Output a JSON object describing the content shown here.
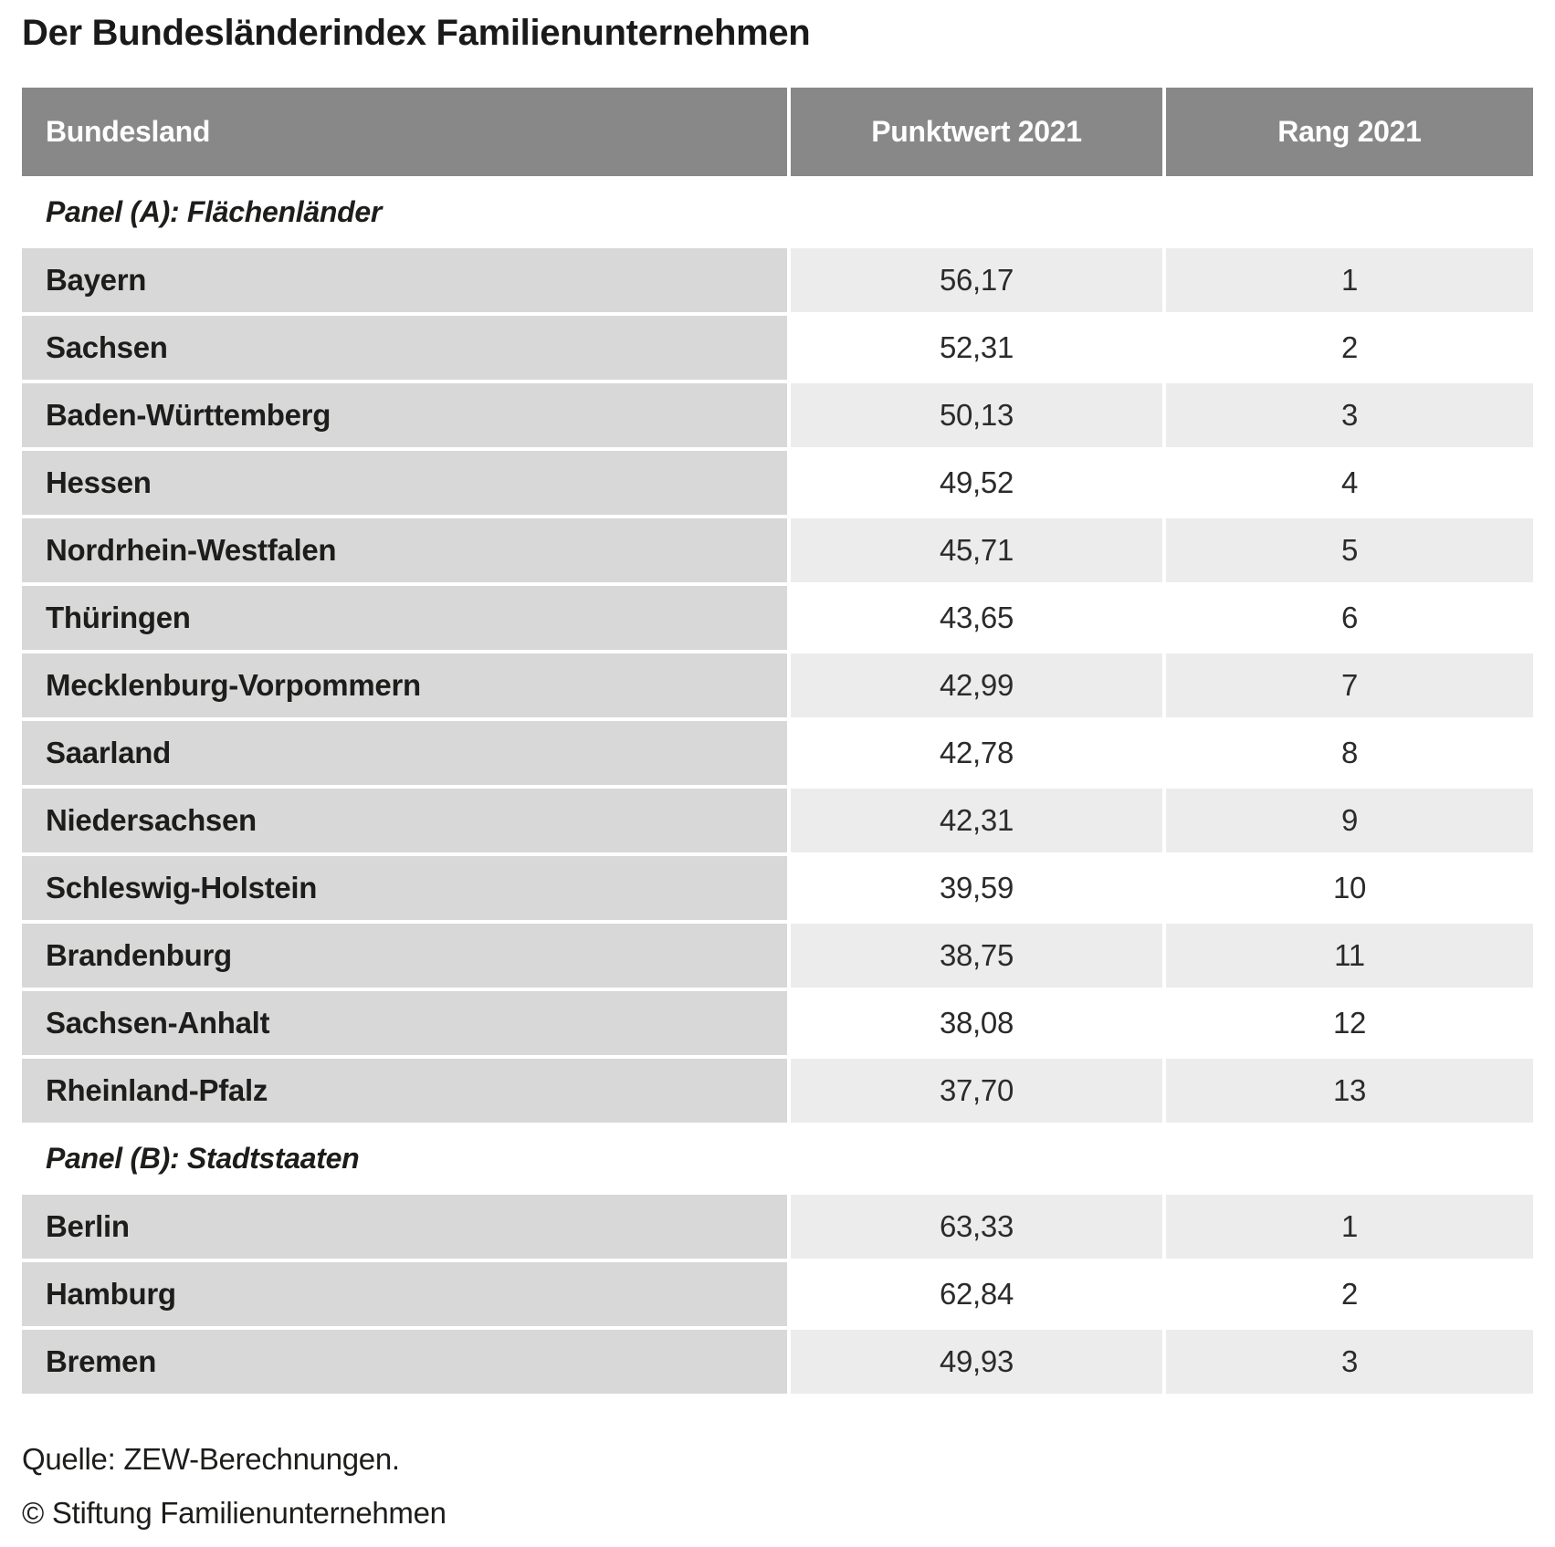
{
  "title": "Der Bundesländerindex Familienunternehmen",
  "table": {
    "columns": [
      "Bundesland",
      "Punktwert 2021",
      "Rang 2021"
    ],
    "panels": [
      {
        "label": "Panel (A): Flächenländer",
        "rows": [
          {
            "bundesland": "Bayern",
            "punktwert": "56,17",
            "rang": "1"
          },
          {
            "bundesland": "Sachsen",
            "punktwert": "52,31",
            "rang": "2"
          },
          {
            "bundesland": "Baden-Württemberg",
            "punktwert": "50,13",
            "rang": "3"
          },
          {
            "bundesland": "Hessen",
            "punktwert": "49,52",
            "rang": "4"
          },
          {
            "bundesland": "Nordrhein-Westfalen",
            "punktwert": "45,71",
            "rang": "5"
          },
          {
            "bundesland": "Thüringen",
            "punktwert": "43,65",
            "rang": "6"
          },
          {
            "bundesland": "Mecklenburg-Vorpommern",
            "punktwert": "42,99",
            "rang": "7"
          },
          {
            "bundesland": "Saarland",
            "punktwert": "42,78",
            "rang": "8"
          },
          {
            "bundesland": "Niedersachsen",
            "punktwert": "42,31",
            "rang": "9"
          },
          {
            "bundesland": "Schleswig-Holstein",
            "punktwert": "39,59",
            "rang": "10"
          },
          {
            "bundesland": "Brandenburg",
            "punktwert": "38,75",
            "rang": "11"
          },
          {
            "bundesland": "Sachsen-Anhalt",
            "punktwert": "38,08",
            "rang": "12"
          },
          {
            "bundesland": "Rheinland-Pfalz",
            "punktwert": "37,70",
            "rang": "13"
          }
        ]
      },
      {
        "label": "Panel (B): Stadtstaaten",
        "rows": [
          {
            "bundesland": "Berlin",
            "punktwert": "63,33",
            "rang": "1"
          },
          {
            "bundesland": "Hamburg",
            "punktwert": "62,84",
            "rang": "2"
          },
          {
            "bundesland": "Bremen",
            "punktwert": "49,93",
            "rang": "3"
          }
        ]
      }
    ]
  },
  "footer": {
    "source": "Quelle: ZEW-Berechnungen.",
    "copyright": "© Stiftung Familienunternehmen"
  },
  "colors": {
    "header_bg": "#888888",
    "header_text": "#ffffff",
    "bundesland_cell_bg": "#d8d8d8",
    "value_cell_shaded_bg": "#ececec",
    "value_cell_plain_bg": "#ffffff",
    "text": "#1d1d1b"
  },
  "chart_data": {
    "type": "table",
    "title": "Der Bundesländerindex Familienunternehmen",
    "columns": [
      "Bundesland",
      "Punktwert 2021",
      "Rang 2021"
    ],
    "panels": [
      {
        "label": "Panel (A): Flächenländer",
        "rows": [
          [
            "Bayern",
            56.17,
            1
          ],
          [
            "Sachsen",
            52.31,
            2
          ],
          [
            "Baden-Württemberg",
            50.13,
            3
          ],
          [
            "Hessen",
            49.52,
            4
          ],
          [
            "Nordrhein-Westfalen",
            45.71,
            5
          ],
          [
            "Thüringen",
            43.65,
            6
          ],
          [
            "Mecklenburg-Vorpommern",
            42.99,
            7
          ],
          [
            "Saarland",
            42.78,
            8
          ],
          [
            "Niedersachsen",
            42.31,
            9
          ],
          [
            "Schleswig-Holstein",
            39.59,
            10
          ],
          [
            "Brandenburg",
            38.75,
            11
          ],
          [
            "Sachsen-Anhalt",
            38.08,
            12
          ],
          [
            "Rheinland-Pfalz",
            37.7,
            13
          ]
        ]
      },
      {
        "label": "Panel (B): Stadtstaaten",
        "rows": [
          [
            "Berlin",
            63.33,
            1
          ],
          [
            "Hamburg",
            62.84,
            2
          ],
          [
            "Bremen",
            49.93,
            3
          ]
        ]
      }
    ]
  }
}
